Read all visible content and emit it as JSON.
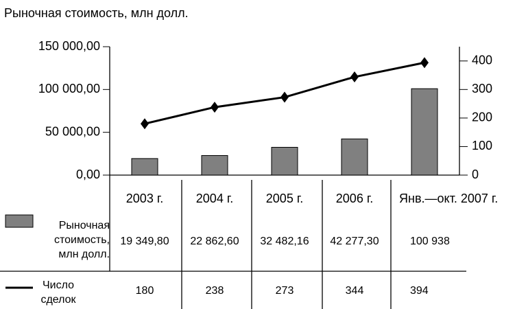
{
  "chart_data": {
    "type": "bar-line",
    "title": "Рыночная стоимость, млн долл.",
    "categories": [
      "2003 г.",
      "2004 г.",
      "2005 г.",
      "2006 г.",
      "Янв.—окт. 2007 г."
    ],
    "series": [
      {
        "name": "Рыночная стоимость, млн долл.",
        "type": "bar",
        "color": "#808080",
        "values": [
          19349.8,
          22862.6,
          32482.16,
          42277.3,
          100938
        ],
        "value_labels": [
          "19 349,80",
          "22 862,60",
          "32 482,16",
          "42 277,30",
          "100 938"
        ]
      },
      {
        "name": "Число сделок",
        "type": "line",
        "axis": "y2",
        "color": "#000000",
        "values": [
          180,
          238,
          273,
          344,
          394
        ]
      }
    ],
    "ylim": [
      0,
      150000
    ],
    "yticks": [
      {
        "value": 0,
        "label": "0,00"
      },
      {
        "value": 50000,
        "label": "50 000,00"
      },
      {
        "value": 100000,
        "label": "100 000,00"
      },
      {
        "value": 150000,
        "label": "150 000,00"
      }
    ],
    "y2lim": [
      0,
      450
    ],
    "y2ticks": [
      0,
      100,
      200,
      300,
      400
    ]
  }
}
